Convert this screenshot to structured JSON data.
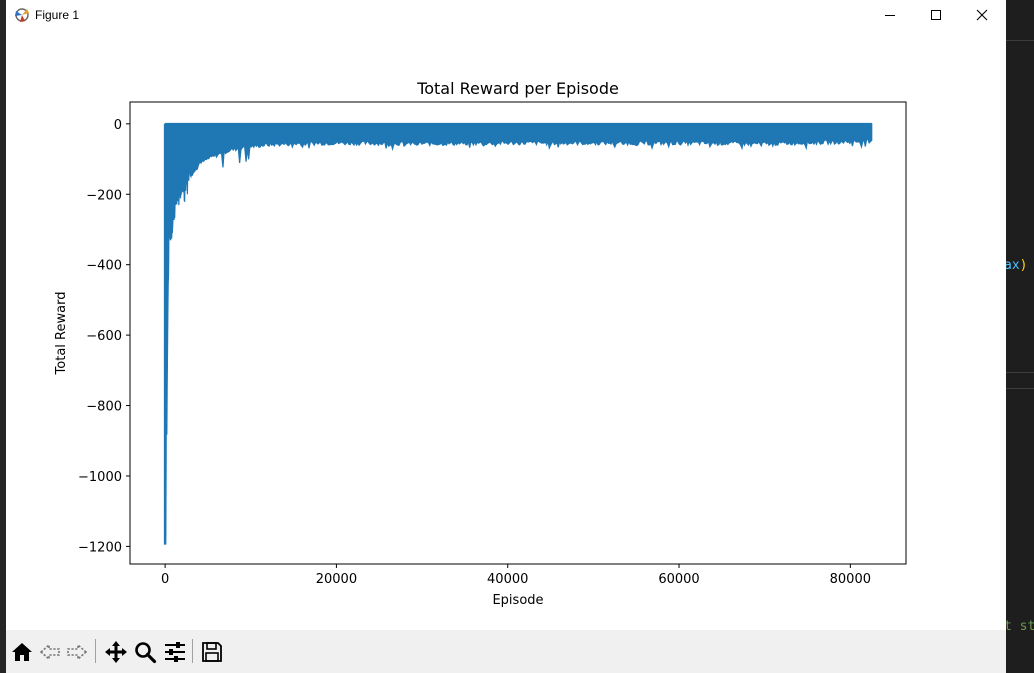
{
  "window": {
    "title": "Figure 1"
  },
  "background_editor": {
    "code_fragment_1": "ax",
    "code_fragment_1_paren": ")",
    "code_fragment_2": "t st"
  },
  "toolbar": {
    "buttons": [
      "home-icon",
      "back-icon",
      "forward-icon",
      "pan-icon",
      "zoom-icon",
      "configure-subplots-icon",
      "save-icon"
    ]
  },
  "colors": {
    "line": "#1f77b4",
    "axes": "#000000",
    "toolbar_bg": "#f0f0f0"
  },
  "chart_data": {
    "type": "line",
    "title": "Total Reward per Episode",
    "xlabel": "Episode",
    "ylabel": "Total Reward",
    "xlim": [
      -4100,
      86500
    ],
    "ylim": [
      -1250,
      62
    ],
    "xticks": [
      0,
      20000,
      40000,
      60000,
      80000
    ],
    "xtick_labels": [
      "0",
      "20000",
      "40000",
      "60000",
      "80000"
    ],
    "yticks": [
      0,
      -200,
      -400,
      -600,
      -800,
      -1000,
      -1200
    ],
    "ytick_labels": [
      "0",
      "−200",
      "−400",
      "−600",
      "−800",
      "−1000",
      "−1200"
    ],
    "grid": false,
    "legend": "none",
    "series": [
      {
        "x_range": [
          0,
          82500
        ],
        "upper_envelope": [
          [
            0,
            0
          ],
          [
            82500,
            0
          ]
        ],
        "lower_envelope": [
          [
            0,
            -1195
          ],
          [
            100,
            -1190
          ],
          [
            150,
            -600
          ],
          [
            200,
            -900
          ],
          [
            300,
            -620
          ],
          [
            400,
            -400
          ],
          [
            500,
            -320
          ],
          [
            700,
            -350
          ],
          [
            900,
            -300
          ],
          [
            1200,
            -260
          ],
          [
            1500,
            -230
          ],
          [
            2000,
            -200
          ],
          [
            2500,
            -175
          ],
          [
            3000,
            -150
          ],
          [
            3500,
            -140
          ],
          [
            4000,
            -120
          ],
          [
            5000,
            -105
          ],
          [
            6000,
            -95
          ],
          [
            7000,
            -85
          ],
          [
            8000,
            -78
          ],
          [
            10000,
            -70
          ],
          [
            12000,
            -65
          ],
          [
            15000,
            -62
          ],
          [
            20000,
            -60
          ],
          [
            30000,
            -62
          ],
          [
            40000,
            -60
          ],
          [
            50000,
            -60
          ],
          [
            60000,
            -60
          ],
          [
            70000,
            -62
          ],
          [
            82500,
            -55
          ]
        ]
      }
    ]
  }
}
